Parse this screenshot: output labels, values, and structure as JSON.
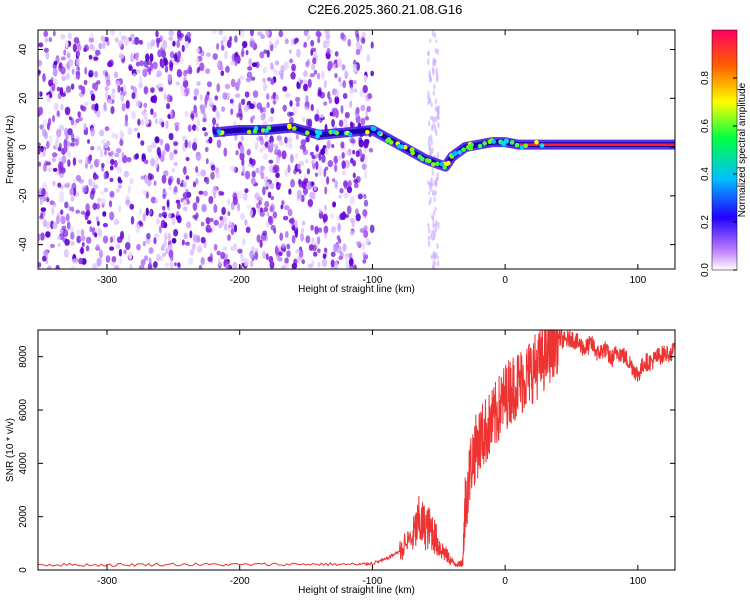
{
  "title": "C2E6.2025.360.21.08.G16",
  "chart_data": [
    {
      "type": "heatmap",
      "name": "spectrogram",
      "xlabel": "Height of straight line (km)",
      "ylabel": "Frequency (Hz)",
      "xlim": [
        -352,
        128
      ],
      "ylim": [
        -50,
        48
      ],
      "xticks": [
        -300,
        -200,
        -100,
        0,
        100
      ],
      "yticks": [
        -40,
        -20,
        0,
        20,
        40
      ],
      "colorbar": {
        "label": "Normalized spectral amplitude",
        "range": [
          0.0,
          1.0
        ],
        "ticks": [
          0.0,
          0.2,
          0.4,
          0.6,
          0.8
        ]
      },
      "ridge": {
        "x": [
          -220,
          -200,
          -180,
          -160,
          -140,
          -120,
          -100,
          -90,
          -80,
          -70,
          -60,
          -50,
          -45,
          -40,
          -30,
          -20,
          -10,
          0,
          10,
          40,
          80,
          128
        ],
        "y": [
          6,
          7,
          7,
          8,
          5,
          6,
          7,
          4,
          1,
          -2,
          -5,
          -7,
          -8,
          -4,
          0,
          1,
          2,
          2,
          1,
          1,
          1,
          1
        ]
      }
    },
    {
      "type": "line",
      "name": "snr",
      "xlabel": "Height of straight line (km)",
      "ylabel": "SNR (10 * v/v)",
      "xlim": [
        -352,
        128
      ],
      "ylim": [
        0,
        9000
      ],
      "xticks": [
        -300,
        -200,
        -100,
        0,
        100
      ],
      "yticks": [
        0,
        2000,
        4000,
        6000,
        8000
      ],
      "color": "#ee3333",
      "series": [
        {
          "name": "SNR",
          "x": [
            -352,
            -300,
            -250,
            -200,
            -150,
            -110,
            -100,
            -90,
            -80,
            -70,
            -65,
            -60,
            -55,
            -50,
            -45,
            -40,
            -35,
            -32,
            -30,
            -25,
            -20,
            -15,
            -10,
            -5,
            0,
            5,
            10,
            15,
            20,
            25,
            30,
            35,
            40,
            45,
            50,
            55,
            60,
            65,
            70,
            75,
            80,
            85,
            90,
            95,
            100,
            105,
            110,
            115,
            120,
            128
          ],
          "y": [
            200,
            190,
            210,
            200,
            220,
            210,
            250,
            400,
            700,
            1200,
            1800,
            1600,
            1500,
            900,
            600,
            300,
            200,
            300,
            2500,
            4200,
            4800,
            5200,
            5500,
            6000,
            6500,
            6800,
            7000,
            7200,
            7500,
            7700,
            8000,
            8400,
            8700,
            8600,
            8700,
            8500,
            8300,
            8500,
            8100,
            8300,
            7900,
            8200,
            8000,
            7700,
            7300,
            7800,
            7800,
            8000,
            8100,
            8200
          ]
        }
      ]
    }
  ]
}
